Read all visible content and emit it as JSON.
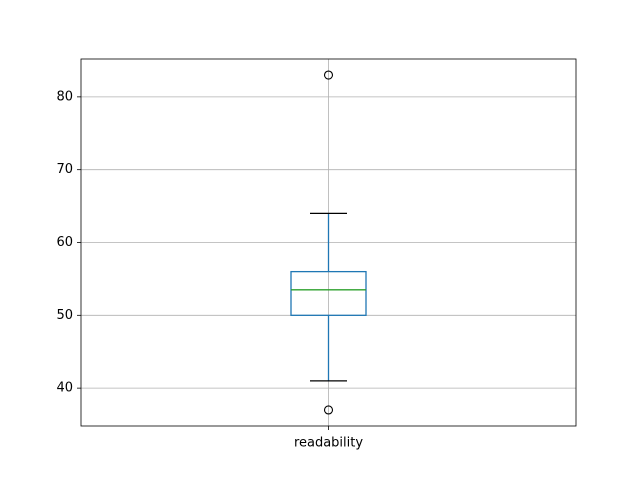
{
  "chart_data": {
    "type": "box",
    "categories": [
      "readability"
    ],
    "boxes": [
      {
        "whislo": 41,
        "q1": 50,
        "med": 53.5,
        "q3": 56,
        "whishi": 64,
        "fliers": [
          37,
          83
        ]
      }
    ],
    "box_color": "#1f77b4",
    "median_color": "#2ca02c",
    "ylim": [
      34.8,
      85.2
    ],
    "yticks": [
      40,
      50,
      60,
      70,
      80
    ],
    "grid": true
  }
}
